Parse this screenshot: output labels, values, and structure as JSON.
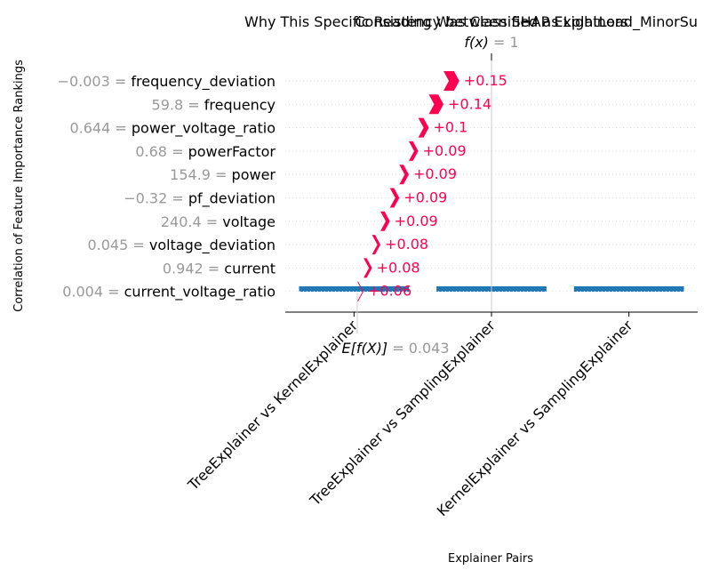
{
  "chart_data": [
    {
      "type": "bar",
      "title": "Consistency between SHAP Explainers",
      "xlabel": "Explainer Pairs",
      "ylabel": "Correlation of Feature Importance Rankings",
      "categories": [
        "TreeExplainer vs KernelExplainer",
        "TreeExplainer vs SamplingExplainer",
        "KernelExplainer vs SamplingExplainer"
      ],
      "values": [
        0.0405,
        0.0405,
        0.0405
      ],
      "bar_color": "#1f77b4"
    },
    {
      "type": "waterfall",
      "title": "Why This Specific Reading Was Classified as LightLoad_MinorSu",
      "fx_symbol": "f(x)",
      "fx_eq": " = ",
      "fx_value": "1",
      "ex_symbol": "E[f(X)]",
      "ex_eq": " = ",
      "ex_value": "0.043",
      "xlim": [
        0,
        1.19
      ],
      "base_value": 0.043,
      "features": [
        {
          "value": "−0.003",
          "eq": " = ",
          "name": "frequency_deviation",
          "contribution": 0.15,
          "label": "+0.15"
        },
        {
          "value": "59.8",
          "eq": " = ",
          "name": "frequency",
          "contribution": 0.14,
          "label": "+0.14"
        },
        {
          "value": "0.644",
          "eq": " = ",
          "name": "power_voltage_ratio",
          "contribution": 0.1,
          "label": "+0.1"
        },
        {
          "value": "0.68",
          "eq": " = ",
          "name": "powerFactor",
          "contribution": 0.09,
          "label": "+0.09"
        },
        {
          "value": "154.9",
          "eq": " = ",
          "name": "power",
          "contribution": 0.09,
          "label": "+0.09"
        },
        {
          "value": "−0.32",
          "eq": " = ",
          "name": "pf_deviation",
          "contribution": 0.09,
          "label": "+0.09"
        },
        {
          "value": "240.4",
          "eq": " = ",
          "name": "voltage",
          "contribution": 0.09,
          "label": "+0.09"
        },
        {
          "value": "0.045",
          "eq": " = ",
          "name": "voltage_deviation",
          "contribution": 0.08,
          "label": "+0.08"
        },
        {
          "value": "0.942",
          "eq": " = ",
          "name": "current",
          "contribution": 0.08,
          "label": "+0.08"
        },
        {
          "value": "0.004",
          "eq": " = ",
          "name": "current_voltage_ratio",
          "contribution": 0.06,
          "label": "+0.06"
        }
      ],
      "positive_color": "#ff0051",
      "label_color": "#999999"
    }
  ]
}
